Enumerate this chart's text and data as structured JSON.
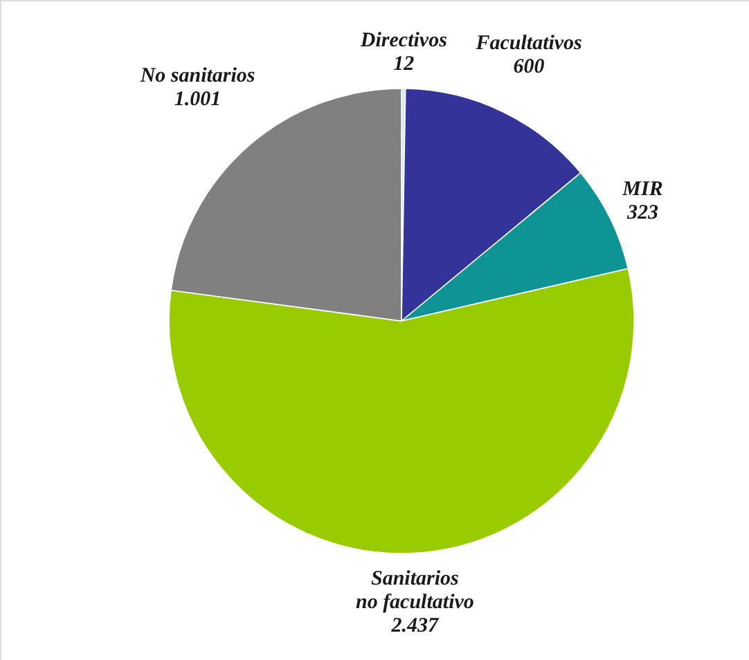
{
  "chart_data": {
    "type": "pie",
    "categories": [
      "Directivos",
      "Facultativos",
      "MIR",
      "Sanitarios no facultativo",
      "No sanitarios"
    ],
    "values": [
      12,
      600,
      323,
      2437,
      1001
    ],
    "value_labels": [
      "12",
      "600",
      "323",
      "2.437",
      "1.001"
    ],
    "colors": [
      "#cceeee",
      "#333399",
      "#0e9494",
      "#99cc00",
      "#808080"
    ]
  }
}
